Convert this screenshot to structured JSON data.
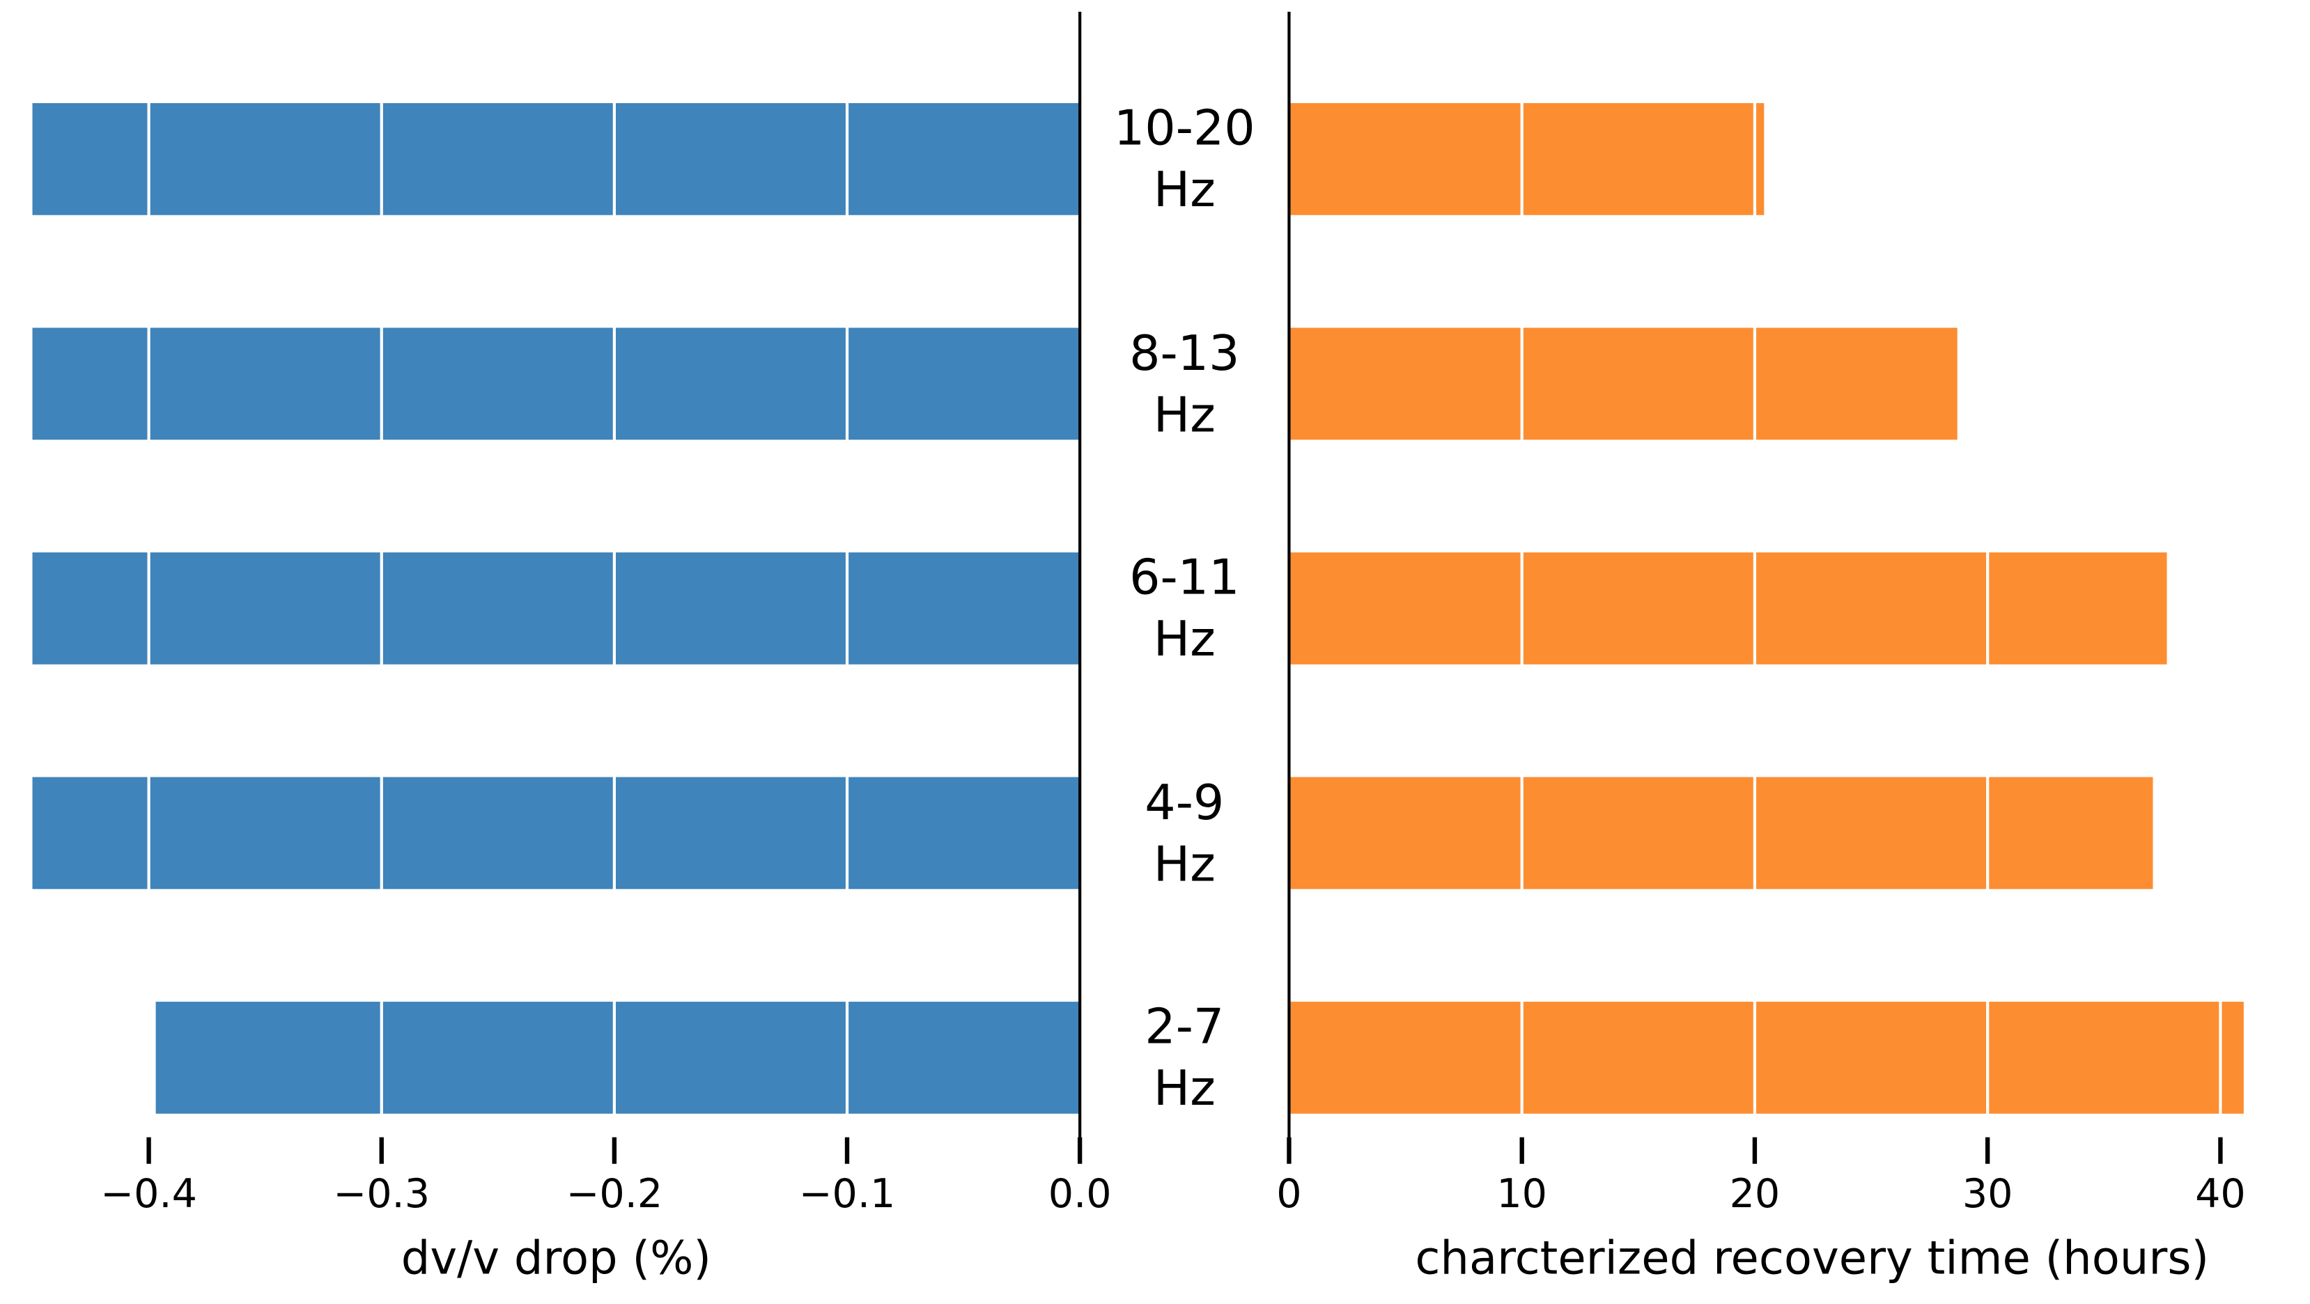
{
  "chart_data": [
    {
      "type": "barh",
      "xlabel": "dv/v drop (%)",
      "categories": [
        "10-20\nHz",
        "8-13\nHz",
        "6-11\nHz",
        "4-9\nHz",
        "2-7\nHz"
      ],
      "values": [
        -0.45,
        -0.45,
        -0.45,
        -0.45,
        -0.397
      ],
      "color": "#3f84bb",
      "xlim": [
        -0.45,
        0
      ],
      "xticks": [
        {
          "value": -0.4,
          "label": "−0.4"
        },
        {
          "value": -0.3,
          "label": "−0.3"
        },
        {
          "value": -0.2,
          "label": "−0.2"
        },
        {
          "value": -0.1,
          "label": "−0.1"
        },
        {
          "value": 0,
          "label": "0.0"
        }
      ],
      "grid": true
    },
    {
      "type": "barh",
      "xlabel": "charcterized recovery time (hours)",
      "values": [
        20.4,
        28.7,
        37.7,
        37.1,
        41.0
      ],
      "color": "#fd8d31",
      "xlim": [
        0,
        41
      ],
      "xticks": [
        0,
        10,
        20,
        30,
        40
      ],
      "grid": true
    }
  ]
}
